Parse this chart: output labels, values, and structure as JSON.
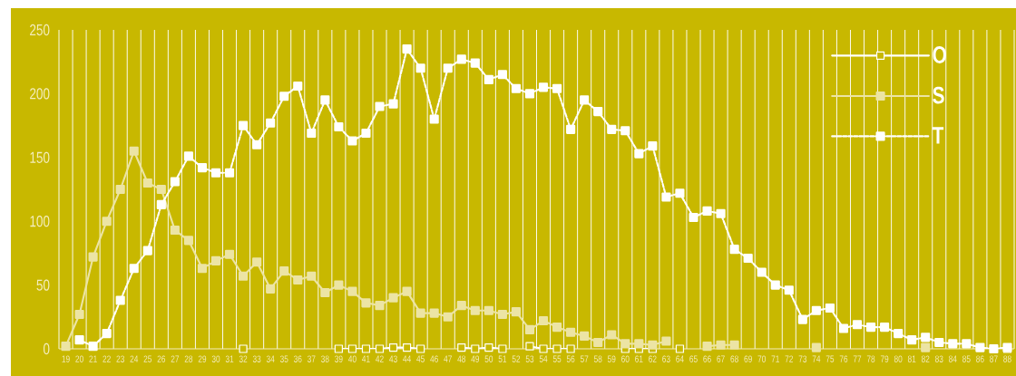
{
  "chart_data": {
    "type": "line",
    "categories": [
      "19",
      "20",
      "21",
      "22",
      "23",
      "24",
      "25",
      "26",
      "27",
      "28",
      "29",
      "30",
      "31",
      "32",
      "33",
      "34",
      "35",
      "36",
      "37",
      "38",
      "39",
      "40",
      "41",
      "42",
      "43",
      "44",
      "45",
      "46",
      "47",
      "48",
      "49",
      "50",
      "51",
      "52",
      "53",
      "54",
      "55",
      "56",
      "57",
      "58",
      "59",
      "60",
      "61",
      "62",
      "63",
      "64",
      "65",
      "66",
      "67",
      "68",
      "69",
      "70",
      "71",
      "72",
      "73",
      "74",
      "75",
      "76",
      "77",
      "78",
      "79",
      "80",
      "81",
      "82",
      "83",
      "84",
      "85",
      "86",
      "87",
      "88"
    ],
    "series": [
      {
        "name": "O",
        "color": "#ffffff",
        "line_style": "solid",
        "values": [
          null,
          null,
          null,
          null,
          null,
          null,
          null,
          null,
          null,
          null,
          null,
          null,
          null,
          0,
          null,
          null,
          null,
          null,
          null,
          null,
          0,
          0,
          0,
          0,
          1,
          1,
          0,
          null,
          null,
          1,
          0,
          1,
          0,
          null,
          2,
          0,
          0,
          0,
          null,
          null,
          null,
          0,
          0,
          0,
          null,
          0,
          null,
          null,
          null,
          null,
          null,
          null,
          null,
          null,
          null,
          null,
          null,
          null,
          null,
          null,
          null,
          null,
          null,
          null,
          null,
          null,
          null,
          null,
          null,
          0
        ]
      },
      {
        "name": "S",
        "color": "#ece4a4",
        "line_style": "solid",
        "values": [
          2,
          27,
          72,
          100,
          125,
          155,
          130,
          125,
          93,
          85,
          63,
          69,
          74,
          57,
          68,
          47,
          61,
          54,
          57,
          44,
          50,
          45,
          36,
          34,
          40,
          45,
          28,
          28,
          25,
          34,
          30,
          30,
          27,
          29,
          15,
          22,
          17,
          13,
          10,
          5,
          11,
          4,
          4,
          3,
          6,
          null,
          null,
          2,
          3,
          3,
          null,
          null,
          null,
          null,
          null,
          1,
          null,
          null,
          null,
          null,
          null,
          null,
          null,
          1,
          null,
          null,
          null,
          null,
          null,
          null
        ]
      },
      {
        "name": "T",
        "color": "#ffffff",
        "line_style": "dashed",
        "values": [
          null,
          7,
          2,
          12,
          38,
          63,
          77,
          113,
          131,
          151,
          142,
          138,
          138,
          175,
          160,
          177,
          198,
          206,
          169,
          195,
          174,
          163,
          169,
          190,
          192,
          235,
          220,
          180,
          220,
          227,
          224,
          211,
          215,
          204,
          200,
          205,
          204,
          172,
          195,
          186,
          172,
          171,
          153,
          159,
          119,
          122,
          103,
          108,
          106,
          78,
          71,
          60,
          50,
          46,
          23,
          30,
          32,
          16,
          19,
          17,
          17,
          12,
          7,
          9,
          5,
          4,
          4,
          1,
          0,
          1
        ]
      }
    ],
    "ylim": [
      0,
      250
    ],
    "yticks": [
      0,
      50,
      100,
      150,
      200,
      250
    ],
    "grid": "x",
    "legend": "top right",
    "marker": "square"
  }
}
